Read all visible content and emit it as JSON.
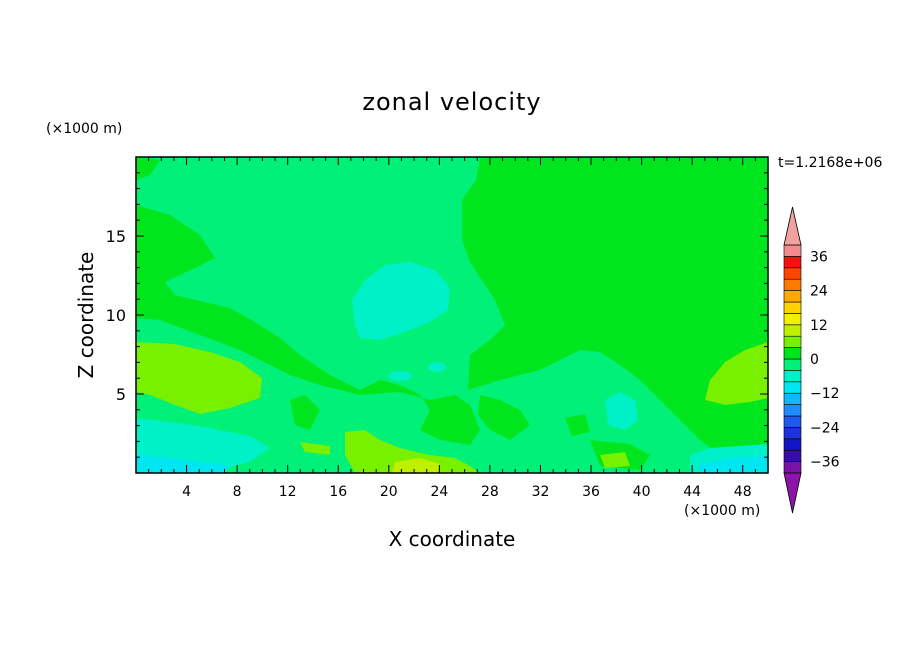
{
  "chart_data": {
    "type": "heatmap",
    "title": "zonal velocity",
    "xlabel": "X coordinate",
    "ylabel": "Z coordinate",
    "x_unit_label": "(×1000 m)",
    "y_unit_label": "(×1000 m)",
    "time_label": "t=1.2168e+06",
    "xlim": [
      0,
      50
    ],
    "ylim": [
      0,
      20
    ],
    "x_ticks": [
      4,
      8,
      12,
      16,
      20,
      24,
      28,
      32,
      36,
      40,
      44,
      48
    ],
    "y_ticks": [
      5,
      10,
      15
    ],
    "colorbar": {
      "levels": [
        -40,
        -36,
        -32,
        -28,
        -24,
        -20,
        -16,
        -12,
        -8,
        -4,
        0,
        4,
        8,
        12,
        16,
        20,
        24,
        28,
        32,
        36,
        40
      ],
      "colors": [
        "#7a12a6",
        "#3a0ca8",
        "#1414c8",
        "#1e32dc",
        "#1e5af0",
        "#1e8cff",
        "#14b4ff",
        "#00e6f0",
        "#00f0c8",
        "#00f078",
        "#00e61e",
        "#78f000",
        "#bef000",
        "#f0f000",
        "#ffd200",
        "#ffaa00",
        "#ff7800",
        "#ff4600",
        "#f01414",
        "#f28c8c"
      ],
      "ticks": [
        -36,
        -24,
        -12,
        0,
        12,
        24,
        36
      ],
      "under_color": "#8c14aa",
      "over_color": "#f2a0a0"
    },
    "regions_note_values": {
      "background_green": 2,
      "upper_left_cyan_green": -6,
      "center_blob": -10,
      "left_yellow_green": 6,
      "bottom_cyan": -12,
      "bottom_center_yellow": 10
    }
  }
}
